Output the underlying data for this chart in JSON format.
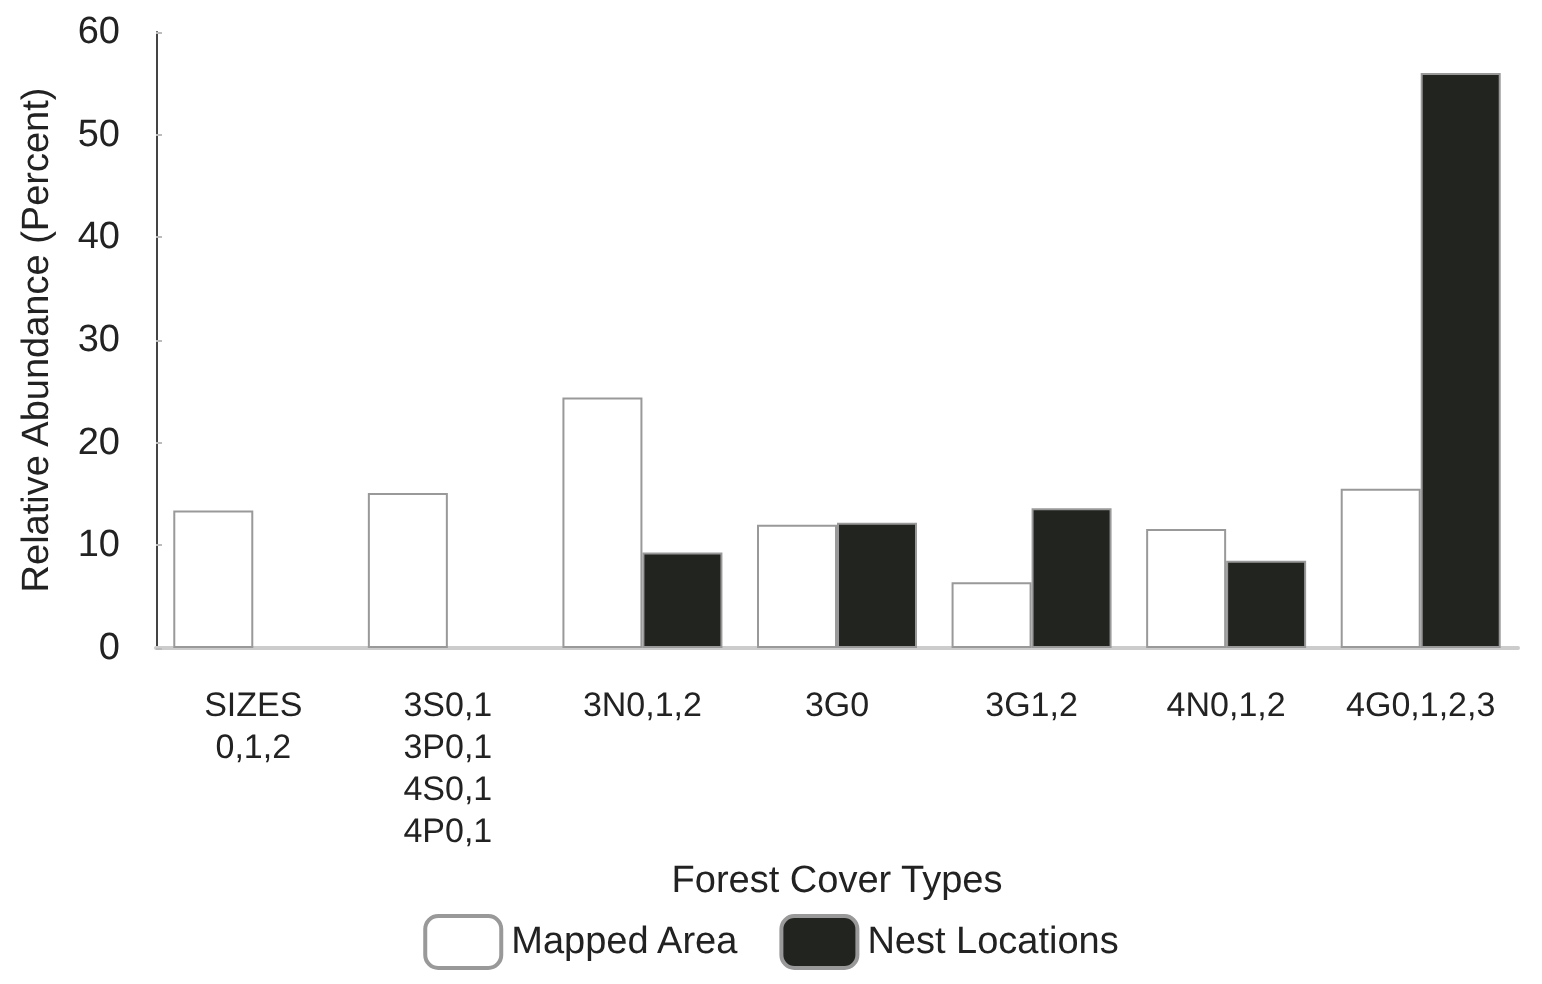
{
  "chart_data": {
    "type": "bar",
    "xlabel": "Forest Cover Types",
    "ylabel": "Relative Abundance (Percent)",
    "categories": [
      "SIZES\n0,1,2",
      "3S0,1\n3P0,1\n4S0,1\n4P0,1",
      "3N0,1,2",
      "3G0",
      "3G1,2",
      "4N0,1,2",
      "4G0,1,2,3"
    ],
    "series": [
      {
        "name": "Mapped Area",
        "color": "#ffffff",
        "values": [
          13.4,
          15.1,
          24.4,
          12.0,
          6.4,
          11.6,
          15.5
        ]
      },
      {
        "name": "Nest Locations",
        "color": "#22241f",
        "values": [
          0,
          0,
          9.3,
          12.2,
          13.6,
          8.5,
          56.0
        ]
      }
    ],
    "ylim": [
      0,
      60
    ],
    "yticks": [
      0,
      10,
      20,
      30,
      40,
      50,
      60
    ],
    "grid": false,
    "legend": "bottom"
  }
}
